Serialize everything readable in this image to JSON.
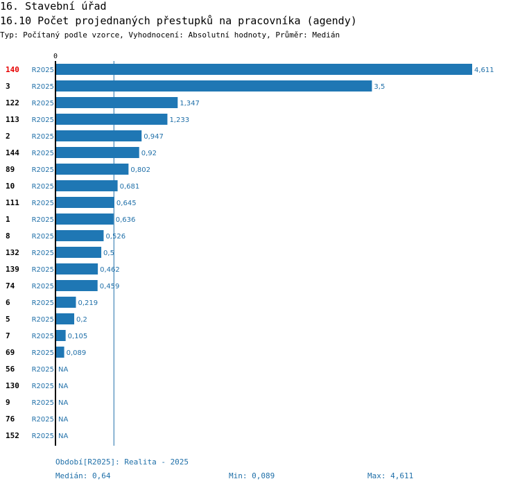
{
  "heading": {
    "section": "16. Stavební úřad",
    "indicator": "16.10 Počet projednaných přestupků na pracovníka (agendy)",
    "meta": "Typ: Počítaný podle vzorce, Vyhodnocení: Absolutní hodnoty, Průměr: Medián"
  },
  "footer": {
    "period": "Období[R2025]: Realita - 2025",
    "median": "Medián: 0,64",
    "min": "Min: 0,089",
    "max": "Max: 4,611"
  },
  "colors": {
    "bar": "#1f77b4",
    "highlight": "#e60000",
    "text": "#000000",
    "label": "#1f6fa8"
  },
  "chart_data": {
    "type": "bar",
    "orientation": "horizontal",
    "axis_zero_label": "0",
    "xlim": [
      0,
      4.611
    ],
    "median": 0.64,
    "highlight_category": "140",
    "series_label": "R2025",
    "categories": [
      "140",
      "3",
      "122",
      "113",
      "2",
      "144",
      "89",
      "10",
      "111",
      "1",
      "8",
      "132",
      "139",
      "74",
      "6",
      "5",
      "7",
      "69",
      "56",
      "130",
      "9",
      "76",
      "152"
    ],
    "values": [
      4.611,
      3.5,
      1.347,
      1.233,
      0.947,
      0.92,
      0.802,
      0.681,
      0.645,
      0.636,
      0.526,
      0.5,
      0.462,
      0.459,
      0.219,
      0.2,
      0.105,
      0.089,
      null,
      null,
      null,
      null,
      null
    ],
    "value_labels": [
      "4,611",
      "3,5",
      "1,347",
      "1,233",
      "0,947",
      "0,92",
      "0,802",
      "0,681",
      "0,645",
      "0,636",
      "0,526",
      "0,5",
      "0,462",
      "0,459",
      "0,219",
      "0,2",
      "0,105",
      "0,089",
      "NA",
      "NA",
      "NA",
      "NA",
      "NA"
    ]
  }
}
